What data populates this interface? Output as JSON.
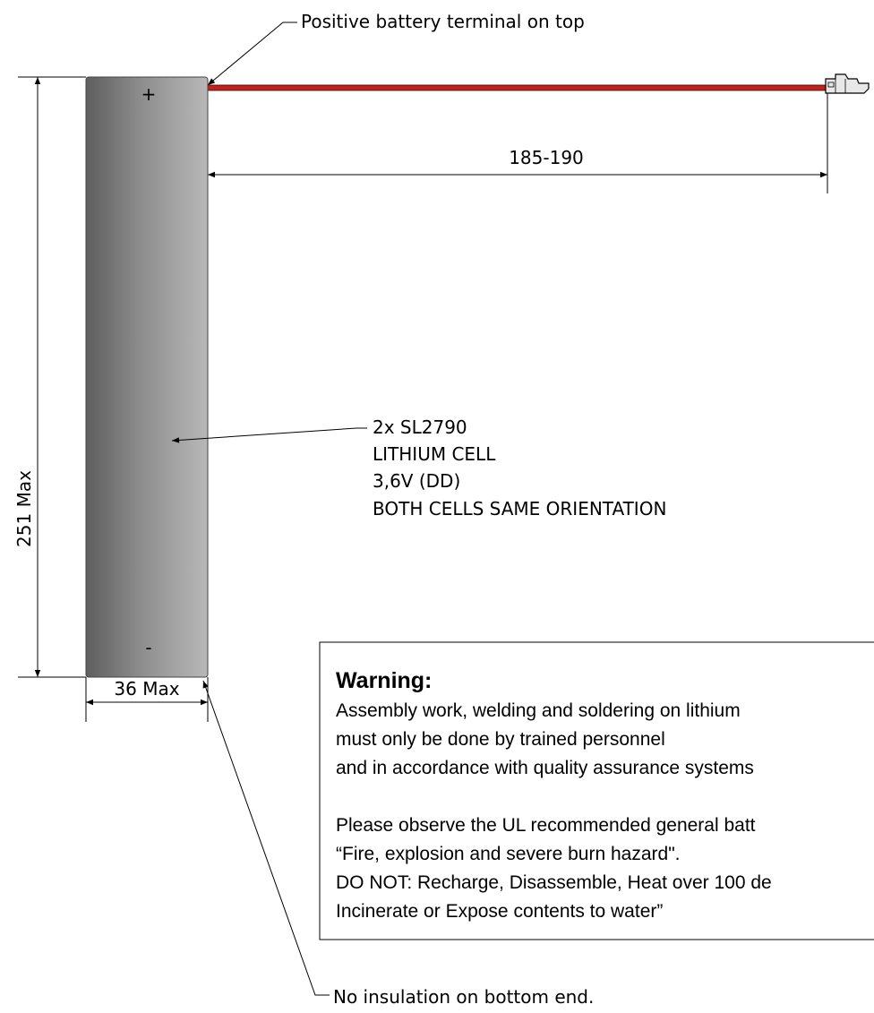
{
  "top_callout": "Positive battery terminal on top",
  "bottom_callout": "No insulation on bottom end.",
  "cell": {
    "plus": "+",
    "minus": "-"
  },
  "dimensions": {
    "wire_length": "185-190",
    "height": "251 Max",
    "width": "36 Max"
  },
  "cell_label": {
    "lines": [
      "2x SL2790",
      "LITHIUM CELL",
      "3,6V (DD)",
      "BOTH CELLS SAME ORIENTATION"
    ]
  },
  "warning": {
    "title": "Warning:",
    "lines": [
      "Assembly work, welding and soldering on lithium",
      "must only be done by trained personnel",
      "and in accordance with quality assurance systems",
      "",
      "Please observe the UL recommended general batt",
      "“Fire, explosion and severe burn hazard\".",
      "DO NOT: Recharge, Disassemble, Heat over 100 de",
      "Incinerate or Expose contents to water”"
    ]
  },
  "colors": {
    "wire": "#c0221b",
    "cell_dark": "#5a5a5a",
    "cell_light": "#b4b4b4"
  }
}
